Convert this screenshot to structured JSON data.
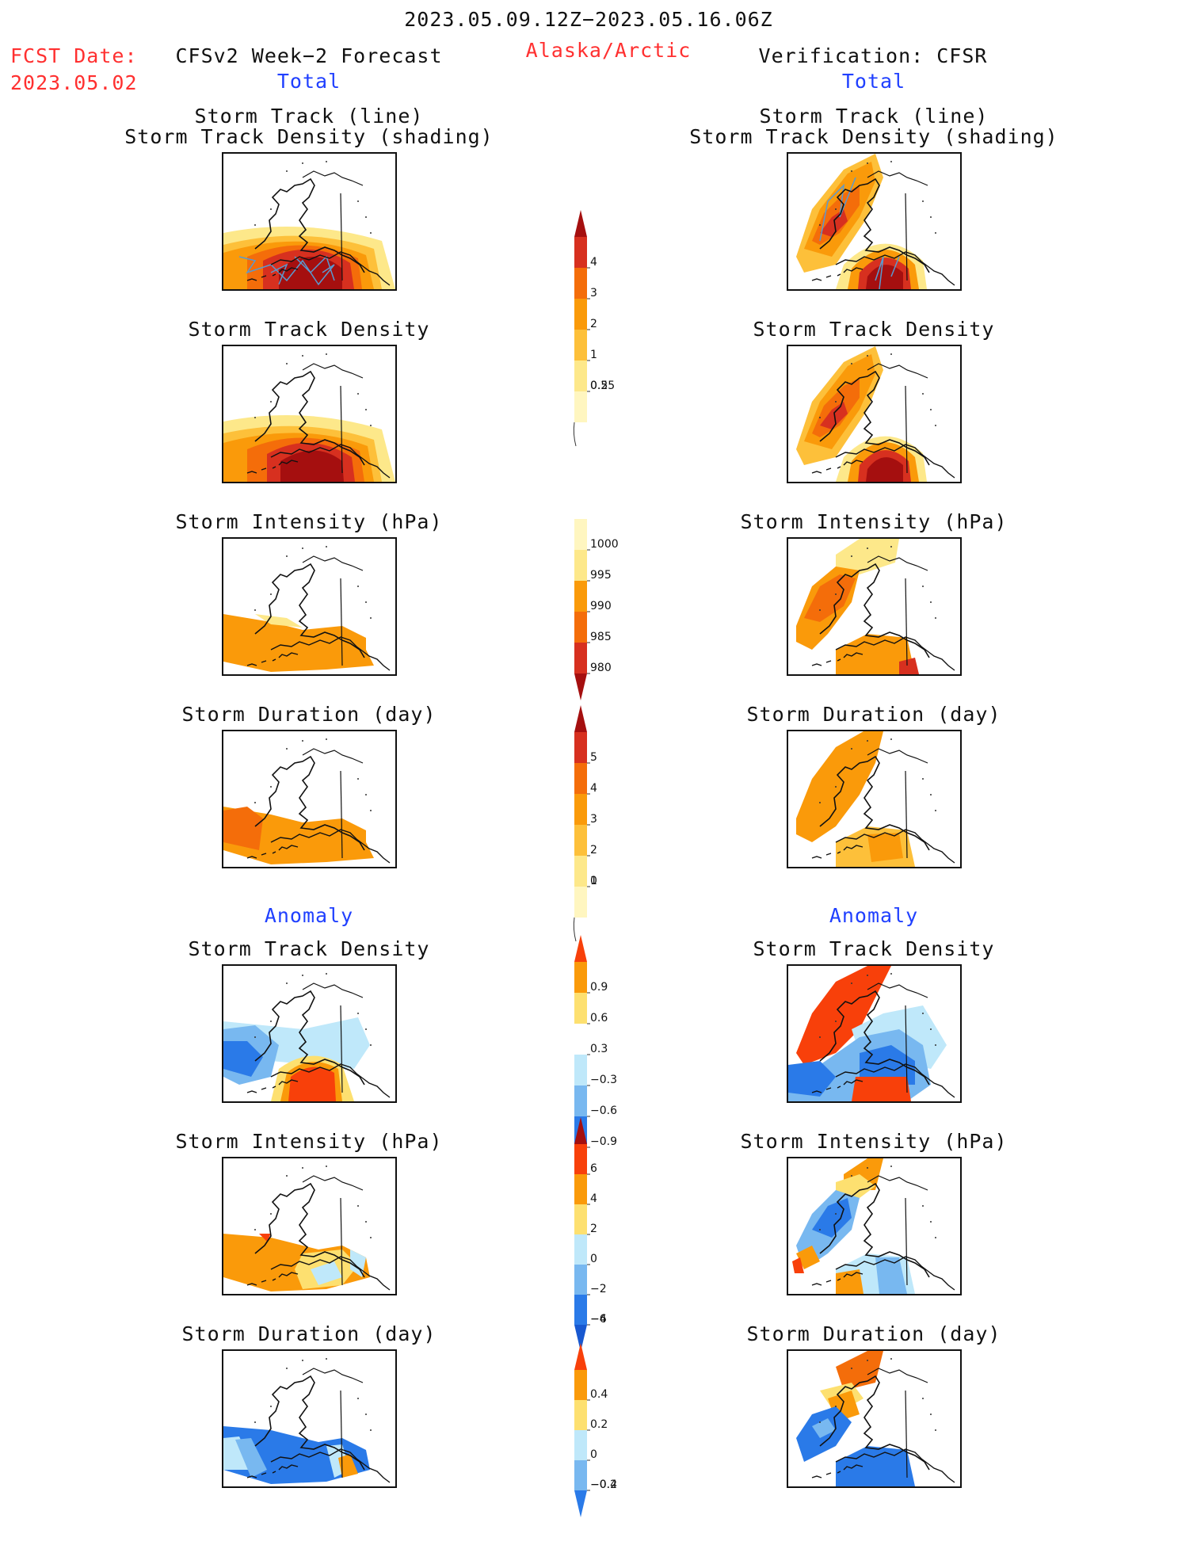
{
  "header": {
    "date_range": "2023.05.09.12Z−2023.05.16.06Z",
    "fcst_label": "FCST Date:",
    "fcst_date": "2023.05.02",
    "forecast_title": "CFSv2 Week−2 Forecast",
    "region": "Alaska/Arctic",
    "verification_title": "Verification: CFSR",
    "left_total": "Total",
    "right_total": "Total"
  },
  "section_labels": {
    "left_anomaly": "Anomaly",
    "right_anomaly": "Anomaly"
  },
  "panels": {
    "track_line": "Storm Track (line)",
    "track_shading": "Storm Track Density (shading)",
    "track_density": "Storm Track Density",
    "intensity": "Storm Intensity (hPa)",
    "duration": "Storm Duration (day)"
  },
  "colorbars": [
    {
      "name": "total-density",
      "labels": [
        "4",
        "3",
        "2",
        "1",
        "0.5",
        "0.25"
      ],
      "colors": [
        "#a50f0f",
        "#d7301f",
        "#f46d0a",
        "#fa9a0a",
        "#fdc03a",
        "#fde88a",
        "#fff6c0"
      ],
      "top_triangle": true,
      "bottom_triangle": false
    },
    {
      "name": "total-intensity",
      "labels": [
        "1000",
        "995",
        "990",
        "985",
        "980"
      ],
      "colors": [
        "#fff6c0",
        "#fde88a",
        "#fa9a0a",
        "#f46d0a",
        "#d7301f",
        "#a50f0f"
      ],
      "top_triangle": false,
      "bottom_triangle": true
    },
    {
      "name": "total-duration",
      "labels": [
        "5",
        "4",
        "3",
        "2",
        "1",
        "0"
      ],
      "colors": [
        "#a50f0f",
        "#d7301f",
        "#f46d0a",
        "#fa9a0a",
        "#fdc03a",
        "#fde88a",
        "#fff6c0"
      ],
      "top_triangle": true,
      "bottom_triangle": false
    },
    {
      "name": "anomaly-density",
      "labels": [
        "0.9",
        "0.6",
        "0.3",
        "−0.3",
        "−0.6",
        "−0.9"
      ],
      "colors": [
        "#f8400a",
        "#fa9a0a",
        "#fde070",
        "#ffffff",
        "#bfe8fa",
        "#78b8f0",
        "#2a7ae8",
        "#1858d0"
      ],
      "top_triangle": true,
      "bottom_triangle": true
    },
    {
      "name": "anomaly-intensity",
      "labels": [
        "6",
        "4",
        "2",
        "0",
        "−2",
        "−4",
        "−6"
      ],
      "colors": [
        "#a50f0f",
        "#f8400a",
        "#fa9a0a",
        "#fde070",
        "#bfe8fa",
        "#78b8f0",
        "#2a7ae8",
        "#1858d0"
      ],
      "top_triangle": true,
      "bottom_triangle": true
    },
    {
      "name": "anomaly-duration",
      "labels": [
        "0.4",
        "0.2",
        "0",
        "−0.2",
        "−0.4"
      ],
      "colors": [
        "#f8400a",
        "#fa9a0a",
        "#fde070",
        "#bfe8fa",
        "#78b8f0",
        "#2a7ae8"
      ],
      "top_triangle": true,
      "bottom_triangle": true
    }
  ],
  "palette": {
    "dark_red": "#a50f0f",
    "red": "#d7301f",
    "orange_red": "#f46d0a",
    "orange": "#fa9a0a",
    "light_orange": "#fdc03a",
    "yellow": "#fde88a",
    "light_blue": "#bfe8fa",
    "mid_blue": "#78b8f0",
    "blue": "#2a7ae8",
    "track_line": "#5a9ad0"
  }
}
